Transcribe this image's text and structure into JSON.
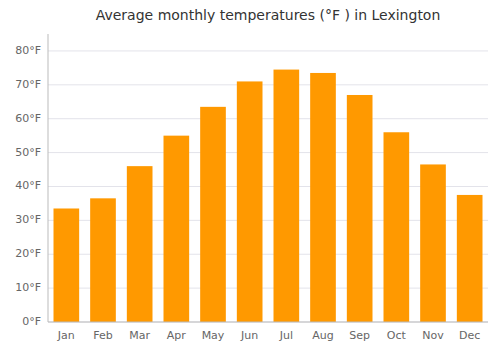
{
  "chart_data": {
    "type": "bar",
    "title": "Average monthly temperatures (°F ) in Lexington",
    "categories": [
      "Jan",
      "Feb",
      "Mar",
      "Apr",
      "May",
      "Jun",
      "Jul",
      "Aug",
      "Sep",
      "Oct",
      "Nov",
      "Dec"
    ],
    "values": [
      33.5,
      36.5,
      46.0,
      55.0,
      63.5,
      71.0,
      74.5,
      73.5,
      67.0,
      56.0,
      46.5,
      37.5
    ],
    "color": "#FF9900",
    "ylim": [
      0,
      85
    ],
    "yticks": [
      {
        "value": 0,
        "label": "0°F"
      },
      {
        "value": 10,
        "label": "10°F"
      },
      {
        "value": 20,
        "label": "20°F"
      },
      {
        "value": 30,
        "label": "30°F"
      },
      {
        "value": 40,
        "label": "40°F"
      },
      {
        "value": 50,
        "label": "50°F"
      },
      {
        "value": 60,
        "label": "60°F"
      },
      {
        "value": 70,
        "label": "70°F"
      },
      {
        "value": 80,
        "label": "80°F"
      }
    ],
    "grid": true
  }
}
